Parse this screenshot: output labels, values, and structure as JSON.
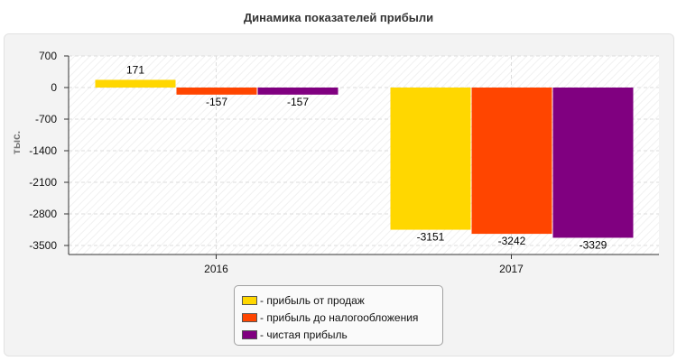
{
  "chart_data": {
    "type": "bar",
    "title": "Динамика показателей прибыли",
    "ylabel": "тыс.",
    "xlabel": "",
    "categories": [
      "2016",
      "2017"
    ],
    "series": [
      {
        "name": "- прибыль от продаж",
        "color": "#ffd700",
        "values": [
          171,
          -3151
        ]
      },
      {
        "name": "- прибыль до налогообложения",
        "color": "#ff4500",
        "values": [
          -157,
          -3242
        ]
      },
      {
        "name": "- чистая прибыль",
        "color": "#800080",
        "values": [
          -157,
          -3329
        ]
      }
    ],
    "ylim": [
      -3700,
      700
    ],
    "yticks": [
      "700",
      "0",
      "-700",
      "-1400",
      "-2100",
      "-2800",
      "-3500"
    ],
    "grid": true,
    "legend_position": "bottom-center"
  }
}
